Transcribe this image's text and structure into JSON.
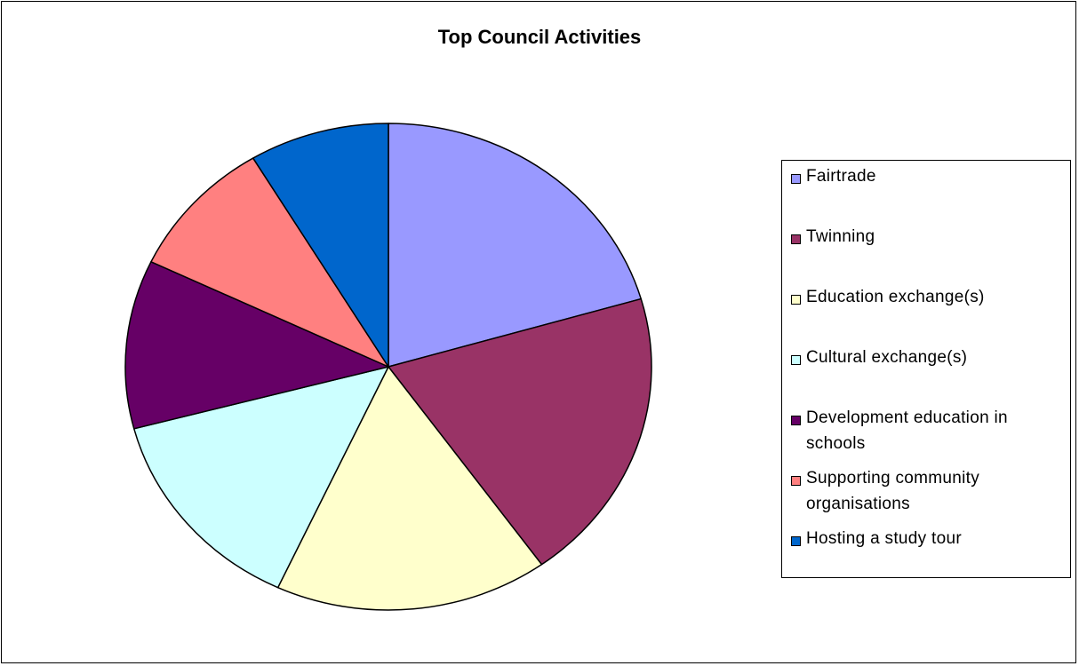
{
  "chart_data": {
    "type": "pie",
    "title": "Top Council Activities",
    "legend_position": "right",
    "categories": [
      "Fairtrade",
      "Twinning",
      "Education exchange(s)",
      "Cultural exchange(s)",
      "Development education in schools",
      "Supporting community organisations",
      "Hosting a study tour"
    ],
    "legend_lines": [
      [
        "Fairtrade"
      ],
      [
        "Twinning"
      ],
      [
        "Education exchange(s)"
      ],
      [
        "Cultural exchange(s)"
      ],
      [
        "Development education in",
        "schools"
      ],
      [
        "Supporting community",
        "organisations"
      ],
      [
        "Hosting a study tour"
      ]
    ],
    "values": [
      20.5,
      19.6,
      16.8,
      14.0,
      11.2,
      9.3,
      8.6
    ],
    "colors": [
      "#9999FF",
      "#993366",
      "#FFFFCC",
      "#CCFFFF",
      "#660066",
      "#FF8080",
      "#0066CC"
    ],
    "start_angle_deg": 0,
    "direction": "clockwise"
  }
}
